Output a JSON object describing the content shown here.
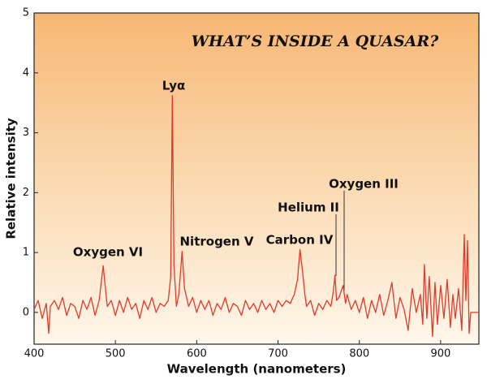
{
  "chart_data": {
    "type": "line",
    "title": "WHAT’S INSIDE A QUASAR?",
    "xlabel": "Wavelength (nanometers)",
    "ylabel": "Relative intensity",
    "annotations": [
      "Oxygen VI",
      "Lyα",
      "Nitrogen V",
      "Carbon IV",
      "Helium II",
      "Oxygen III"
    ],
    "xlim": [
      400,
      947
    ],
    "ylim": [
      -0.53,
      5
    ],
    "xticks": [
      400,
      500,
      600,
      700,
      800,
      900
    ],
    "yticks": [
      0,
      1,
      2,
      3,
      4,
      5
    ],
    "series": [
      {
        "color": "#e03a2a",
        "x": [
          400,
          405,
          410,
          415,
          418,
          420,
          425,
          430,
          435,
          440,
          445,
          450,
          455,
          460,
          465,
          470,
          475,
          480,
          483,
          485,
          487,
          490,
          495,
          500,
          505,
          510,
          515,
          520,
          525,
          530,
          535,
          540,
          545,
          550,
          555,
          560,
          565,
          568,
          570,
          572,
          575,
          578,
          582,
          585,
          590,
          595,
          600,
          605,
          610,
          615,
          620,
          625,
          630,
          635,
          640,
          645,
          650,
          655,
          660,
          665,
          670,
          675,
          680,
          685,
          690,
          695,
          700,
          705,
          710,
          715,
          720,
          724,
          727,
          730,
          733,
          735,
          740,
          745,
          750,
          755,
          760,
          765,
          768,
          770,
          772,
          775,
          780,
          783,
          785,
          790,
          795,
          800,
          805,
          810,
          815,
          820,
          825,
          830,
          835,
          840,
          845,
          850,
          855,
          860,
          865,
          870,
          875,
          878,
          880,
          883,
          886,
          890,
          893,
          896,
          900,
          904,
          908,
          912,
          915,
          918,
          922,
          926,
          929,
          931,
          933,
          935,
          937,
          947
        ],
        "values": [
          0.05,
          0.2,
          -0.1,
          0.15,
          -0.35,
          0.1,
          0.2,
          0.05,
          0.25,
          -0.05,
          0.15,
          0.1,
          -0.1,
          0.2,
          0.05,
          0.25,
          -0.05,
          0.2,
          0.55,
          0.78,
          0.5,
          0.1,
          0.2,
          -0.05,
          0.2,
          0.0,
          0.25,
          0.05,
          0.15,
          -0.1,
          0.2,
          0.05,
          0.25,
          0.0,
          0.15,
          0.1,
          0.2,
          0.6,
          3.62,
          0.8,
          0.1,
          0.3,
          1.02,
          0.4,
          0.1,
          0.25,
          0.0,
          0.2,
          0.05,
          0.2,
          -0.05,
          0.15,
          0.05,
          0.25,
          0.0,
          0.15,
          0.1,
          -0.05,
          0.2,
          0.05,
          0.15,
          0.0,
          0.2,
          0.05,
          0.15,
          0.0,
          0.2,
          0.1,
          0.2,
          0.15,
          0.3,
          0.55,
          1.05,
          0.7,
          0.3,
          0.1,
          0.2,
          -0.05,
          0.15,
          0.05,
          0.2,
          0.1,
          0.35,
          0.62,
          0.2,
          0.25,
          0.45,
          0.15,
          0.3,
          0.05,
          0.2,
          0.0,
          0.25,
          -0.1,
          0.2,
          0.0,
          0.3,
          -0.05,
          0.2,
          0.5,
          -0.1,
          0.25,
          0.05,
          -0.3,
          0.4,
          0.0,
          0.3,
          -0.2,
          0.8,
          -0.1,
          0.6,
          -0.4,
          0.5,
          -0.2,
          0.45,
          -0.1,
          0.55,
          -0.25,
          0.3,
          -0.1,
          0.4,
          -0.3,
          1.3,
          0.2,
          1.2,
          -0.35,
          0.0,
          0.0
        ]
      }
    ]
  }
}
